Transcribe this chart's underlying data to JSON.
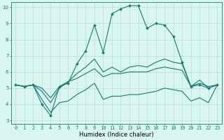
{
  "title": "",
  "xlabel": "Humidex (Indice chaleur)",
  "x_values": [
    0,
    1,
    2,
    3,
    4,
    5,
    6,
    7,
    8,
    9,
    10,
    11,
    12,
    13,
    14,
    15,
    16,
    17,
    18,
    19,
    20,
    21,
    22,
    23
  ],
  "line1": [
    5.2,
    5.1,
    5.2,
    4.0,
    3.3,
    5.1,
    5.3,
    6.5,
    7.3,
    8.9,
    7.2,
    9.6,
    9.9,
    10.1,
    10.1,
    8.7,
    9.0,
    8.9,
    8.2,
    6.6,
    5.1,
    5.2,
    5.0,
    5.2
  ],
  "line2": [
    5.2,
    5.1,
    5.2,
    4.8,
    4.1,
    5.0,
    5.4,
    5.9,
    6.3,
    6.8,
    6.0,
    6.3,
    6.0,
    6.3,
    6.4,
    6.3,
    6.6,
    6.8,
    6.6,
    6.5,
    5.1,
    5.5,
    5.0,
    5.2
  ],
  "line3": [
    5.2,
    5.1,
    5.2,
    5.0,
    4.4,
    5.1,
    5.4,
    5.6,
    5.9,
    6.2,
    5.7,
    5.9,
    5.9,
    6.0,
    6.0,
    6.0,
    6.2,
    6.3,
    6.2,
    6.1,
    5.1,
    5.3,
    5.1,
    5.2
  ],
  "line4": [
    5.2,
    5.1,
    5.2,
    4.3,
    3.5,
    4.1,
    4.2,
    4.6,
    4.9,
    5.3,
    4.3,
    4.5,
    4.5,
    4.6,
    4.6,
    4.7,
    4.8,
    5.0,
    4.9,
    4.8,
    4.2,
    4.4,
    4.1,
    5.2
  ],
  "line_color": "#1a7a6e",
  "bg_color": "#d8f5f0",
  "grid_color": "#b8deda",
  "ylim": [
    2.8,
    10.3
  ],
  "yticks": [
    3,
    4,
    5,
    6,
    7,
    8,
    9,
    10
  ],
  "xticks": [
    0,
    1,
    2,
    3,
    4,
    5,
    6,
    7,
    8,
    9,
    10,
    11,
    12,
    13,
    14,
    15,
    16,
    17,
    18,
    19,
    20,
    21,
    22,
    23
  ],
  "xlim": [
    -0.5,
    23.5
  ],
  "marker": "D",
  "markersize": 2.0,
  "linewidth": 0.8,
  "tick_fontsize": 5.0,
  "xlabel_fontsize": 6.0
}
